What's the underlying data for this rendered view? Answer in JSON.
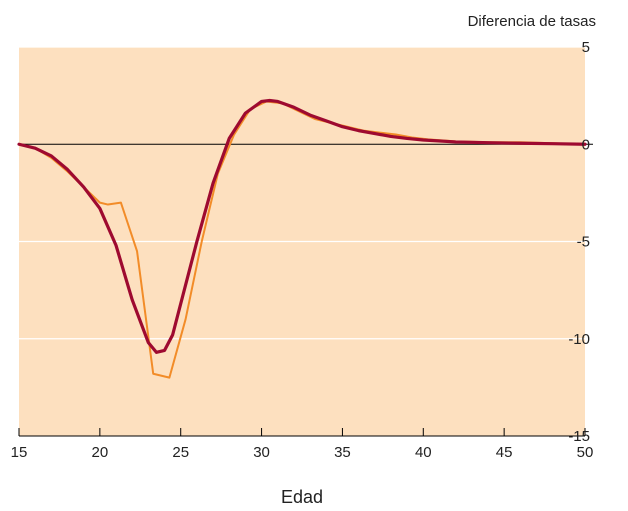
{
  "chart_data": {
    "type": "line",
    "xlabel": "Edad",
    "ylabel": "Diferencia de tasas",
    "xlim": [
      15,
      50
    ],
    "ylim": [
      -15,
      5
    ],
    "x_ticks": [
      15,
      20,
      25,
      30,
      35,
      40,
      45,
      50
    ],
    "y_ticks": [
      5,
      0,
      -5,
      -10,
      -15
    ],
    "y_tick_labels": [
      "5",
      "0",
      "-5",
      "-10",
      "-15"
    ],
    "grid": "horizontal",
    "legend": "none",
    "colors": {
      "background": "#fde0bf",
      "series_orange": "#f28c28",
      "series_dark": "#9e0a30",
      "zero_line": "#000000",
      "grid": "#ffffff"
    },
    "series": [
      {
        "x": [
          15,
          16,
          17,
          18,
          19,
          20,
          20.5,
          21.3,
          22.3,
          23.3,
          24.3,
          25.3,
          26.3,
          27.3,
          28.3,
          29.3,
          30.3,
          31.3,
          32.3,
          33.3,
          34.3,
          35.3,
          36.3,
          37.3,
          38.3,
          39.3,
          40.3,
          42,
          44,
          46,
          48,
          50
        ],
        "y": [
          0,
          -0.2,
          -0.7,
          -1.4,
          -2.2,
          -3.0,
          -3.1,
          -3.0,
          -5.5,
          -11.8,
          -12.0,
          -9.0,
          -5.0,
          -1.5,
          0.5,
          1.8,
          2.2,
          2.1,
          1.7,
          1.3,
          1.1,
          0.9,
          0.7,
          0.6,
          0.5,
          0.35,
          0.25,
          0.15,
          0.1,
          0.1,
          0.05,
          0
        ]
      },
      {
        "x": [
          15,
          16,
          17,
          18,
          19,
          20,
          21,
          22,
          23,
          23.5,
          24,
          24.5,
          25,
          26,
          27,
          28,
          29,
          30,
          30.5,
          31,
          32,
          33,
          34,
          35,
          36,
          37,
          38,
          39,
          40,
          42,
          44,
          46,
          48,
          50
        ],
        "y": [
          0,
          -0.2,
          -0.6,
          -1.3,
          -2.2,
          -3.3,
          -5.2,
          -8.0,
          -10.2,
          -10.7,
          -10.6,
          -9.8,
          -8.2,
          -5.0,
          -2.0,
          0.3,
          1.6,
          2.2,
          2.25,
          2.2,
          1.9,
          1.5,
          1.2,
          0.9,
          0.7,
          0.55,
          0.4,
          0.3,
          0.22,
          0.12,
          0.08,
          0.05,
          0.03,
          0
        ]
      }
    ]
  }
}
